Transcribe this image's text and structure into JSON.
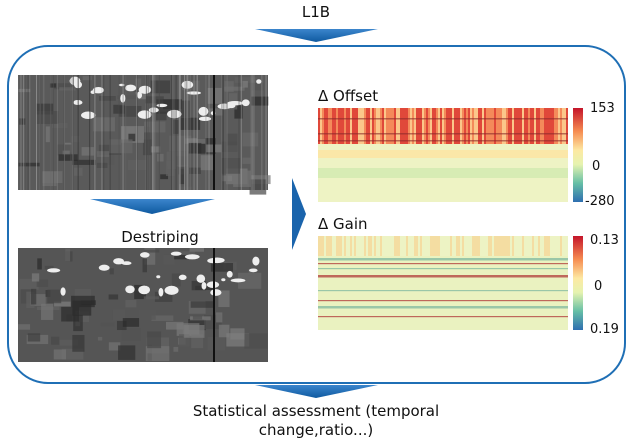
{
  "header": {
    "title": "L1B"
  },
  "steps": {
    "destriping": "Destriping"
  },
  "panels": [
    {
      "title": "Δ Offset",
      "colorbar_labels": [
        "153",
        "0",
        "-280"
      ]
    },
    {
      "title": "Δ Gain",
      "colorbar_labels": [
        "0.13",
        "0",
        "0.19"
      ]
    }
  ],
  "footer": {
    "lines": [
      "Statistical assessment (temporal",
      "change,ratio...)"
    ]
  }
}
